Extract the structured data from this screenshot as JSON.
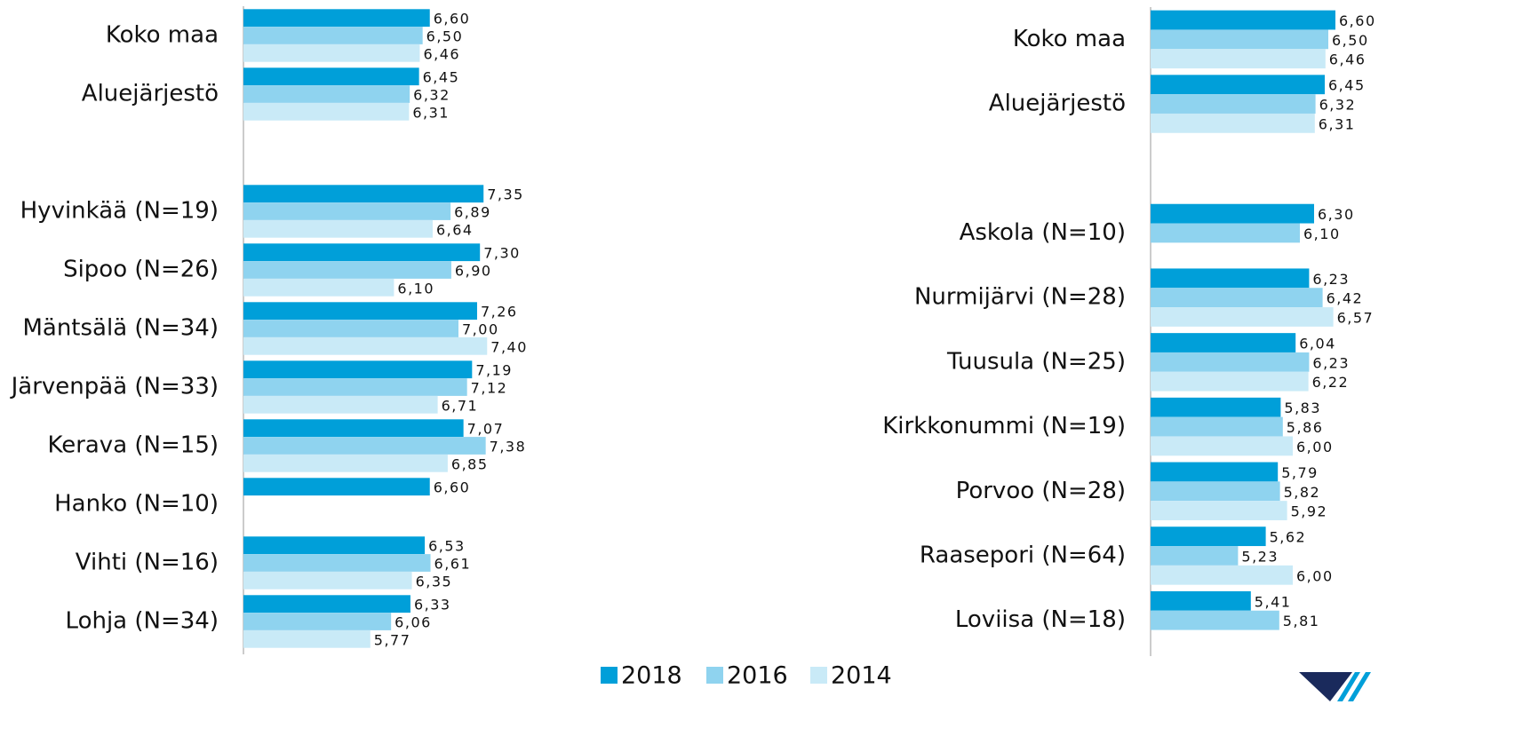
{
  "chart_data": [
    {
      "type": "barh",
      "categories": [
        "Koko maa",
        "Aluejärjestö",
        null,
        "Hyvinkää (N=19)",
        "Sipoo (N=26)",
        "Mäntsälä (N=34)",
        "Järvenpää (N=33)",
        "Kerava (N=15)",
        "Hanko (N=10)",
        "Vihti (N=16)",
        "Lohja (N=34)"
      ],
      "xlim": [
        4,
        8.5
      ],
      "series": [
        {
          "name": "2018",
          "color": "#009fd9",
          "values": [
            6.6,
            6.45,
            null,
            7.35,
            7.3,
            7.26,
            7.19,
            7.07,
            6.6,
            6.53,
            6.33
          ],
          "value_labels": [
            "6,60",
            "6,45",
            null,
            "7,35",
            "7,30",
            "7,26",
            "7,19",
            "7,07",
            "6,60",
            "6,53",
            "6,33"
          ]
        },
        {
          "name": "2016",
          "color": "#8fd3ef",
          "values": [
            6.5,
            6.32,
            null,
            6.89,
            6.9,
            7.0,
            7.12,
            7.38,
            null,
            6.61,
            6.06
          ],
          "value_labels": [
            "6,50",
            "6,32",
            null,
            "6,89",
            "6,90",
            "7,00",
            "7,12",
            "7,38",
            null,
            "6,61",
            "6,06"
          ]
        },
        {
          "name": "2014",
          "color": "#c9eaf7",
          "values": [
            6.46,
            6.31,
            null,
            6.64,
            6.1,
            7.4,
            6.71,
            6.85,
            null,
            6.35,
            5.77
          ],
          "value_labels": [
            "6,46",
            "6,31",
            null,
            "6,64",
            "6,10",
            "7,40",
            "6,71",
            "6,85",
            null,
            "6,35",
            "5,77"
          ]
        }
      ]
    },
    {
      "type": "barh",
      "categories": [
        "Koko maa",
        "Aluejärjestö",
        null,
        "Askola (N=10)",
        "Nurmijärvi (N=28)",
        "Tuusula (N=25)",
        "Kirkkonummi (N=19)",
        "Porvoo (N=28)",
        "Raasepori (N=64)",
        "Loviisa (N=18)"
      ],
      "xlim": [
        4,
        8.5
      ],
      "series": [
        {
          "name": "2018",
          "color": "#009fd9",
          "values": [
            6.6,
            6.45,
            null,
            6.3,
            6.23,
            6.04,
            5.83,
            5.79,
            5.62,
            5.41
          ],
          "value_labels": [
            "6,60",
            "6,45",
            null,
            "6,30",
            "6,23",
            "6,04",
            "5,83",
            "5,79",
            "5,62",
            "5,41"
          ]
        },
        {
          "name": "2016",
          "color": "#8fd3ef",
          "values": [
            6.5,
            6.32,
            null,
            6.1,
            6.42,
            6.23,
            5.86,
            5.82,
            5.23,
            5.81
          ],
          "value_labels": [
            "6,50",
            "6,32",
            null,
            "6,10",
            "6,42",
            "6,23",
            "5,86",
            "5,82",
            "5,23",
            "5,81"
          ]
        },
        {
          "name": "2014",
          "color": "#c9eaf7",
          "values": [
            6.46,
            6.31,
            null,
            null,
            6.57,
            6.22,
            6.0,
            5.92,
            6.0,
            null
          ],
          "value_labels": [
            "6,46",
            "6,31",
            null,
            null,
            "6,57",
            "6,22",
            "6,00",
            "5,92",
            "6,00",
            null
          ]
        }
      ]
    }
  ]
}
